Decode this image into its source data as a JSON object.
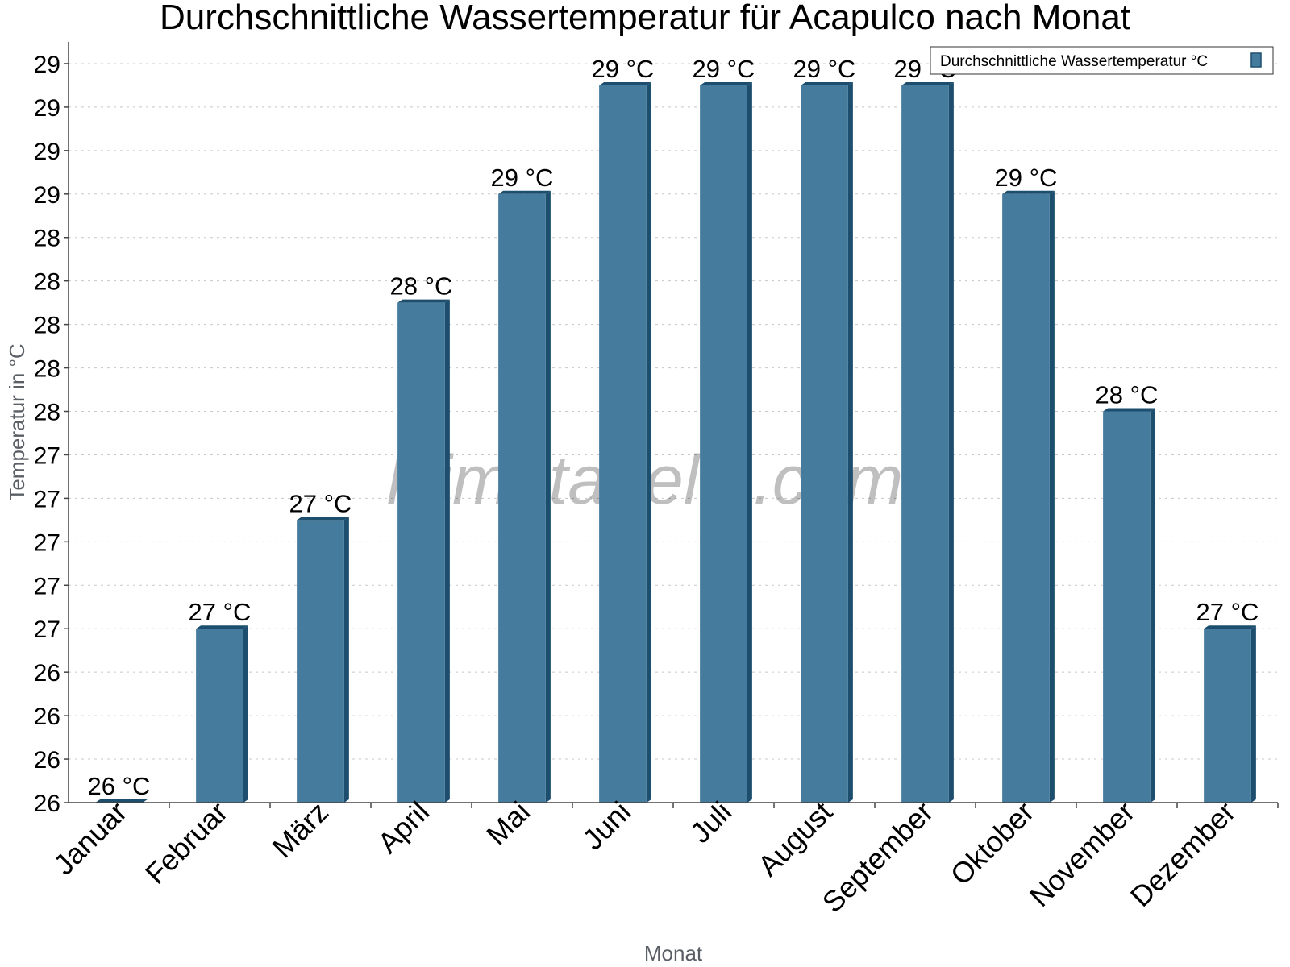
{
  "chart_data": {
    "type": "bar",
    "title": "Durchschnittliche Wassertemperatur für Acapulco nach Monat",
    "xlabel": "Monat",
    "ylabel": "Temperatur in °C",
    "categories": [
      "Januar",
      "Februar",
      "März",
      "April",
      "Mai",
      "Juni",
      "Juli",
      "August",
      "September",
      "Oktober",
      "November",
      "Dezember"
    ],
    "series": [
      {
        "name": "Durchschnittliche Wassertemperatur °C",
        "values": [
          25.8,
          26.6,
          27.1,
          28.1,
          28.6,
          29.1,
          29.1,
          29.1,
          29.1,
          28.6,
          27.6,
          26.6
        ],
        "data_labels": [
          "26 °C",
          "27 °C",
          "27 °C",
          "28 °C",
          "29 °C",
          "29 °C",
          "29 °C",
          "29 °C",
          "29 °C",
          "29 °C",
          "28 °C",
          "27 °C"
        ]
      }
    ],
    "ylim": [
      25.8,
      29.3
    ],
    "yticks": [
      25.8,
      26.0,
      26.2,
      26.4,
      26.6,
      26.8,
      27.0,
      27.2,
      27.4,
      27.6,
      27.8,
      28.0,
      28.2,
      28.4,
      28.6,
      28.8,
      29.0,
      29.2
    ],
    "ytick_labels": [
      "26",
      "26",
      "26",
      "26",
      "27",
      "27",
      "27",
      "27",
      "27",
      "28",
      "28",
      "28",
      "28",
      "28",
      "29",
      "29",
      "29",
      "29"
    ],
    "grid": true,
    "legend_position": "top-right",
    "colors": {
      "bar": "#457b9d",
      "bar_edge": "#1d4e6e"
    },
    "watermark": "klimatabelle.com"
  }
}
